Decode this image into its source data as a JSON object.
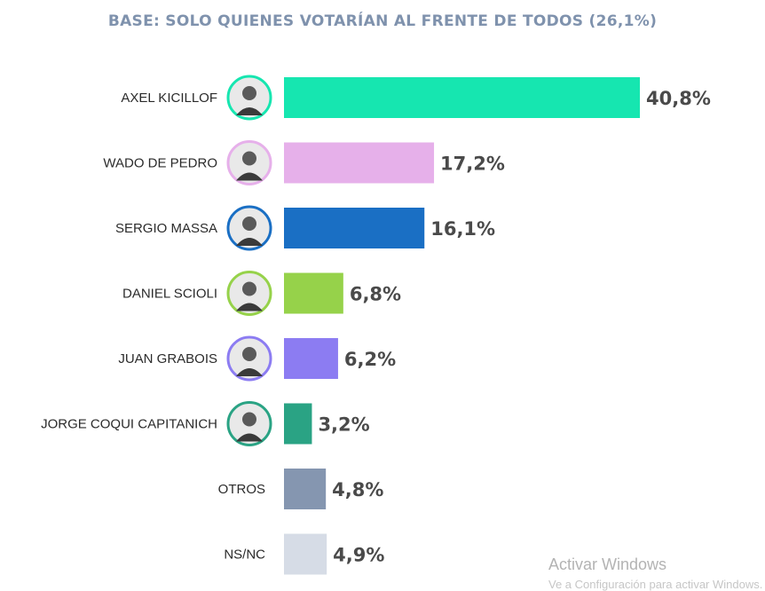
{
  "title": "BASE: SOLO QUIENES VOTARÍAN AL FRENTE DE TODOS (26,1%)",
  "chart_data": {
    "type": "bar",
    "orientation": "horizontal",
    "title": "BASE: SOLO QUIENES VOTARÍAN AL FRENTE DE TODOS (26,1%)",
    "categories": [
      "AXEL KICILLOF",
      "WADO DE PEDRO",
      "SERGIO MASSA",
      "DANIEL SCIOLI",
      "JUAN GRABOIS",
      "JORGE COQUI CAPITANICH",
      "OTROS",
      "NS/NC"
    ],
    "values": [
      40.8,
      17.2,
      16.1,
      6.8,
      6.2,
      3.2,
      4.8,
      4.9
    ],
    "value_labels": [
      "40,8%",
      "17,2%",
      "16,1%",
      "6,8%",
      "6,2%",
      "3,2%",
      "4,8%",
      "4,9%"
    ],
    "colors": [
      "#16e6b0",
      "#e6b0ea",
      "#1a6fc4",
      "#96d24a",
      "#8c7cf2",
      "#2aa384",
      "#8596b0",
      "#d6dce6"
    ],
    "has_photo": [
      true,
      true,
      true,
      true,
      true,
      true,
      false,
      false
    ],
    "photo_ring_colors": [
      "#16e6b0",
      "#e6b0ea",
      "#1a6fc4",
      "#96d24a",
      "#8c7cf2",
      "#2aa384"
    ],
    "legend": "none",
    "grid": false
  },
  "watermark": {
    "line1": "Activar Windows",
    "line2": "Ve a Configuración para activar Windows."
  }
}
